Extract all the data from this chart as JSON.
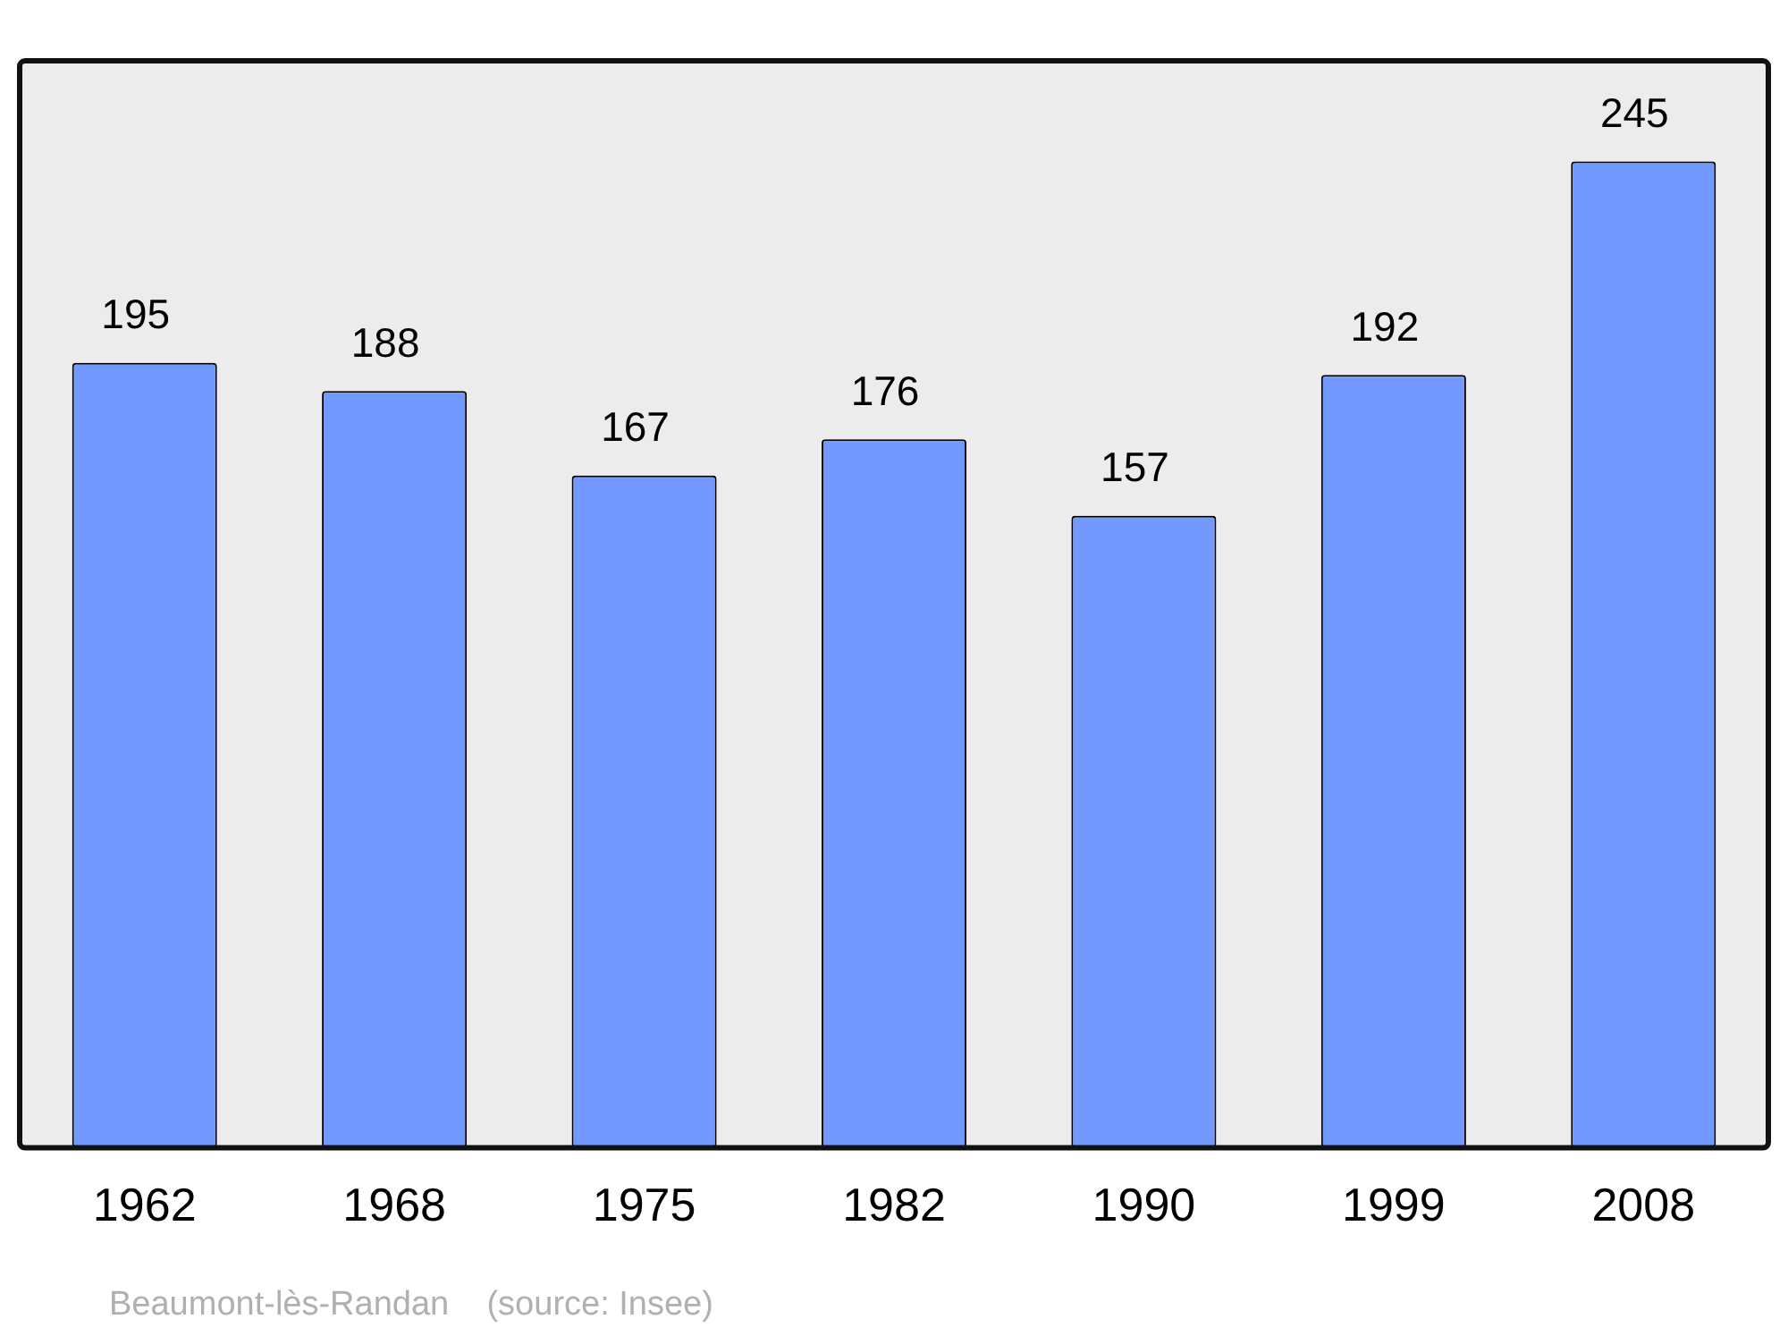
{
  "chart_data": {
    "type": "bar",
    "categories": [
      "1962",
      "1968",
      "1975",
      "1982",
      "1990",
      "1999",
      "2008"
    ],
    "values": [
      195,
      188,
      167,
      176,
      157,
      192,
      245
    ],
    "color": "#7399ff",
    "ylim": [
      0,
      270
    ],
    "tick_labels": "x",
    "data_labels": true,
    "annotations": [
      "Beaumont-lès-Randan    (source: Insee)"
    ]
  }
}
